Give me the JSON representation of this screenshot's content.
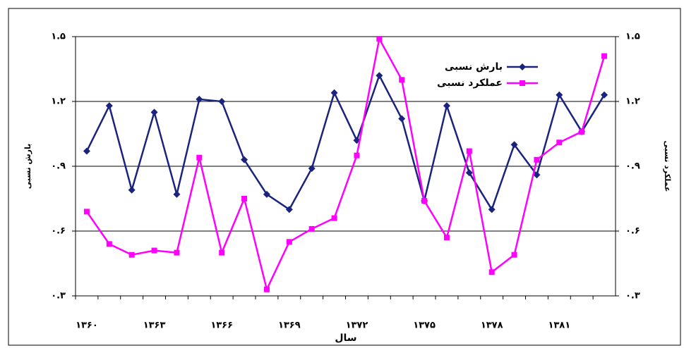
{
  "chart_data": {
    "type": "line",
    "x_label": "سال",
    "y_label": "بارش نسبی",
    "y2_label": "عملکرد نسبی",
    "categories": [
      "۱۳۶۰",
      null,
      null,
      "۱۳۶۳",
      null,
      null,
      "۱۳۶۶",
      null,
      null,
      "۱۳۶۹",
      null,
      null,
      "۱۳۷۲",
      null,
      null,
      "۱۳۷۵",
      null,
      null,
      "۱۳۷۸",
      null,
      null,
      "۱۳۸۱",
      null,
      null
    ],
    "series": [
      {
        "name": "بارش نسبی",
        "color": "#1a237e",
        "marker": "diamond",
        "values": [
          0.97,
          1.18,
          0.79,
          1.15,
          0.77,
          1.21,
          1.2,
          0.93,
          0.77,
          0.7,
          0.89,
          1.24,
          1.02,
          1.32,
          1.12,
          0.74,
          1.18,
          0.87,
          0.7,
          1.0,
          0.86,
          1.23,
          1.06,
          1.23
        ]
      },
      {
        "name": "عملکرد نسبی",
        "color": "#ff00ff",
        "marker": "square",
        "axis": "y2",
        "values": [
          0.69,
          0.54,
          0.49,
          0.51,
          0.5,
          0.94,
          0.5,
          0.75,
          0.33,
          0.55,
          0.61,
          0.66,
          0.95,
          1.49,
          1.3,
          0.74,
          0.57,
          0.97,
          0.41,
          0.49,
          0.93,
          1.01,
          1.06,
          1.41
        ]
      }
    ],
    "ylim": [
      0.3,
      1.5
    ],
    "yticks": [
      {
        "value": 0.3,
        "label": "۰.۳"
      },
      {
        "value": 0.6,
        "label": "۰.۶"
      },
      {
        "value": 0.9,
        "label": "۰.۹"
      },
      {
        "value": 1.2,
        "label": "۱.۲"
      },
      {
        "value": 1.5,
        "label": "۱.۵"
      }
    ],
    "y2lim": [
      0.3,
      1.5
    ],
    "y2ticks": [
      {
        "value": 0.3,
        "label": "۰.۳"
      },
      {
        "value": 0.6,
        "label": "۰.۶"
      },
      {
        "value": 0.9,
        "label": "۰.۹"
      },
      {
        "value": 1.2,
        "label": "۱.۲"
      },
      {
        "value": 1.5,
        "label": "۱.۵"
      }
    ],
    "grid": true,
    "legend": "top-right"
  }
}
